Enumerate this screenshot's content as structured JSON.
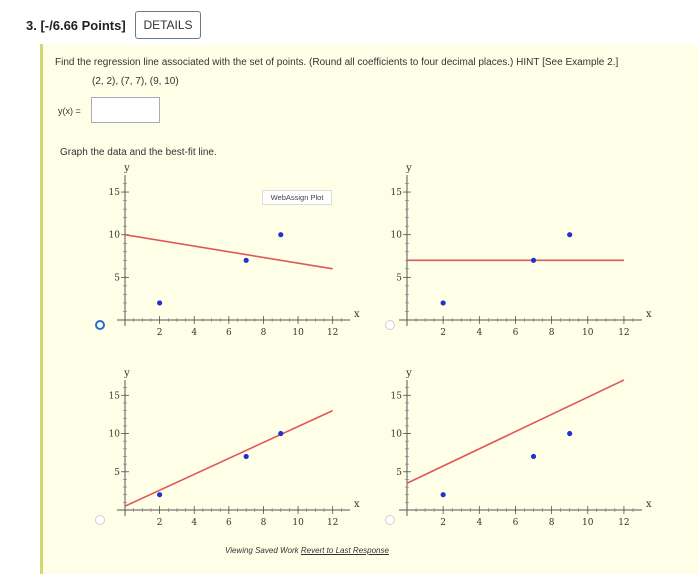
{
  "question": {
    "number_label": "3. [-/6.66 Points]",
    "details_button": "DETAILS",
    "prompt": "Find the regression line associated with the set of points. (Round all coefficients to four decimal places.) HINT [See Example 2.]",
    "points": "(2, 2), (7, 7), (9, 10)",
    "answer_label": "y(x) =",
    "answer_value": "",
    "graph_prompt": "Graph the data and the best-fit line."
  },
  "plot_overlay": "WebAssign Plot",
  "footer": {
    "prefix": "Viewing Saved Work ",
    "link": "Revert to Last Response"
  },
  "chart_data": [
    {
      "type": "scatter",
      "xlabel": "x",
      "ylabel": "y",
      "xlim": [
        0,
        13
      ],
      "ylim": [
        0,
        17
      ],
      "xticks": [
        2,
        4,
        6,
        8,
        10,
        12
      ],
      "yticks": [
        5,
        10,
        15
      ],
      "selected": true,
      "points": [
        [
          2,
          2
        ],
        [
          7,
          7
        ],
        [
          9,
          10
        ]
      ],
      "line": [
        [
          0,
          10
        ],
        [
          12,
          6
        ]
      ]
    },
    {
      "type": "scatter",
      "xlabel": "x",
      "ylabel": "y",
      "xlim": [
        0,
        13
      ],
      "ylim": [
        0,
        17
      ],
      "xticks": [
        2,
        4,
        6,
        8,
        10,
        12
      ],
      "yticks": [
        5,
        10,
        15
      ],
      "selected": false,
      "points": [
        [
          2,
          2
        ],
        [
          7,
          7
        ],
        [
          9,
          10
        ]
      ],
      "line": [
        [
          0,
          7
        ],
        [
          12,
          7
        ]
      ]
    },
    {
      "type": "scatter",
      "xlabel": "x",
      "ylabel": "y",
      "xlim": [
        0,
        13
      ],
      "ylim": [
        0,
        17
      ],
      "xticks": [
        2,
        4,
        6,
        8,
        10,
        12
      ],
      "yticks": [
        5,
        10,
        15
      ],
      "selected": false,
      "points": [
        [
          2,
          2
        ],
        [
          7,
          7
        ],
        [
          9,
          10
        ]
      ],
      "line": [
        [
          0,
          0.5
        ],
        [
          12,
          13
        ]
      ]
    },
    {
      "type": "scatter",
      "xlabel": "x",
      "ylabel": "y",
      "xlim": [
        0,
        13
      ],
      "ylim": [
        0,
        17
      ],
      "xticks": [
        2,
        4,
        6,
        8,
        10,
        12
      ],
      "yticks": [
        5,
        10,
        15
      ],
      "selected": false,
      "points": [
        [
          2,
          2
        ],
        [
          7,
          7
        ],
        [
          9,
          10
        ]
      ],
      "line": [
        [
          0,
          3.5
        ],
        [
          12,
          17
        ]
      ]
    }
  ]
}
